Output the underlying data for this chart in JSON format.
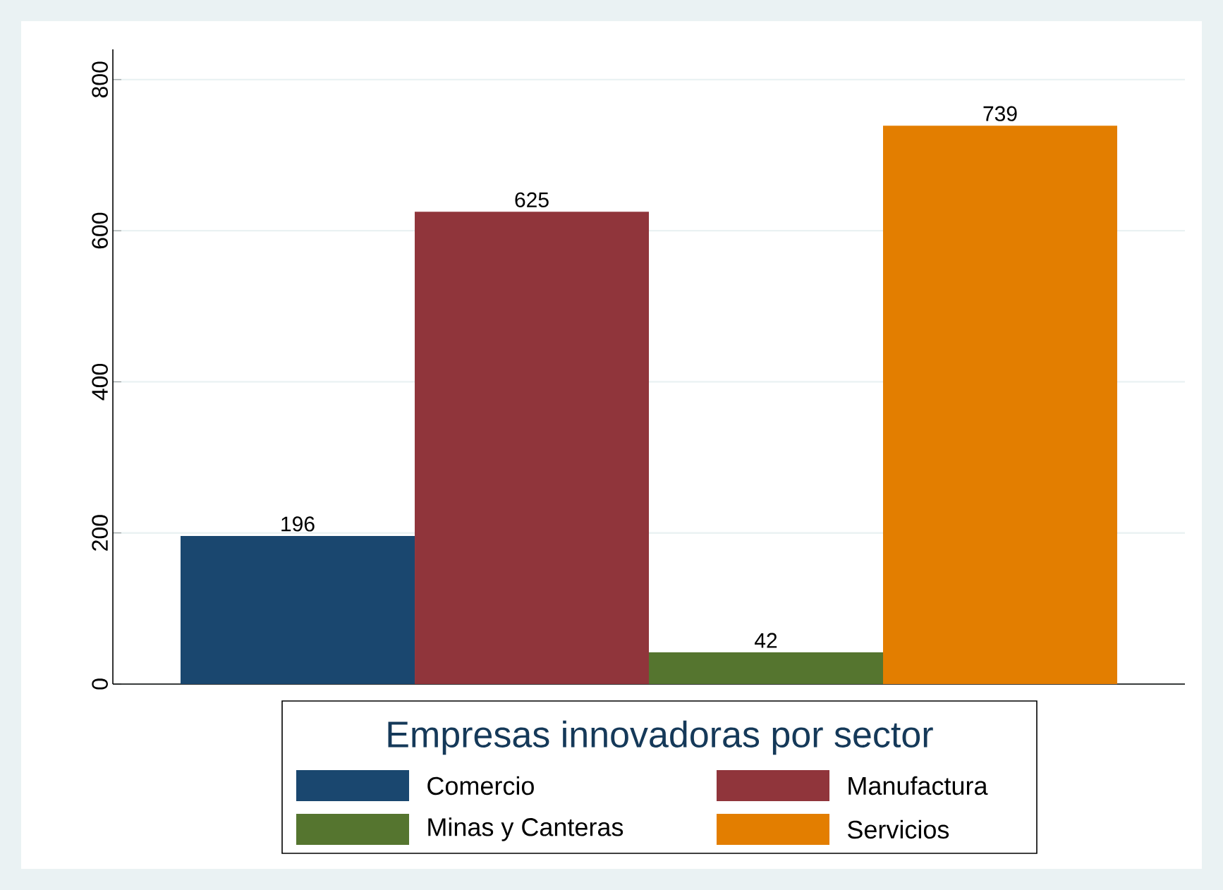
{
  "chart_data": {
    "type": "bar",
    "categories": [
      null
    ],
    "series": [
      {
        "name": "Comercio",
        "color": "#1a476f",
        "values": [
          196
        ]
      },
      {
        "name": "Manufactura",
        "color": "#90353b",
        "values": [
          625
        ]
      },
      {
        "name": "Minas y Canteras",
        "color": "#55752f",
        "values": [
          42
        ]
      },
      {
        "name": "Servicios",
        "color": "#e37e00",
        "values": [
          739
        ]
      }
    ],
    "legend_title": "Empresas innovadoras por sector",
    "ylim": [
      0,
      840
    ],
    "yticks": [
      0,
      200,
      400,
      600,
      800
    ],
    "grid": "y",
    "legend": "bottom",
    "data_labels": true
  }
}
